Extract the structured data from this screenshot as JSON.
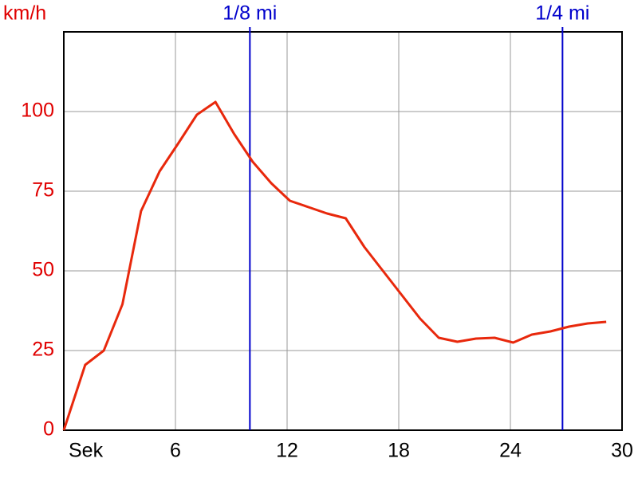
{
  "chart_data": {
    "type": "line",
    "y_label": "km/h",
    "x": [
      0,
      1.15,
      2.15,
      3.15,
      4.15,
      5.15,
      6.15,
      7.15,
      8.15,
      9.15,
      10.15,
      11.15,
      12.15,
      13.15,
      14.15,
      15.15,
      16.15,
      17.15,
      18.15,
      19.15,
      20.15,
      21.15,
      22.15,
      23.15,
      24.15,
      25.15,
      26.15,
      27.15,
      28.15,
      29.15
    ],
    "series": [
      {
        "color": "#e8280c",
        "values": [
          0,
          20.5,
          25,
          39.5,
          68.75,
          81.25,
          90,
          99,
          103,
          93,
          84.25,
          77.5,
          72,
          70,
          68,
          66.5,
          57.5,
          50,
          42.5,
          35,
          29,
          27.75,
          28.75,
          29,
          27.5,
          30,
          31,
          32.5,
          33.5,
          34
        ]
      }
    ],
    "xlim": [
      0,
      30
    ],
    "xticks": [
      {
        "value": 0,
        "label": "Sek"
      },
      6,
      12,
      18,
      24,
      30
    ],
    "ylim": [
      0,
      125
    ],
    "yticks": [
      0,
      25,
      50,
      75,
      100
    ],
    "grid": true,
    "y_tick_color": "#e00000",
    "markers": [
      {
        "label": "1/8 mi",
        "x": 10
      },
      {
        "label": "1/4 mi",
        "x": 26.8
      }
    ],
    "marker_color": "#0000cc"
  }
}
